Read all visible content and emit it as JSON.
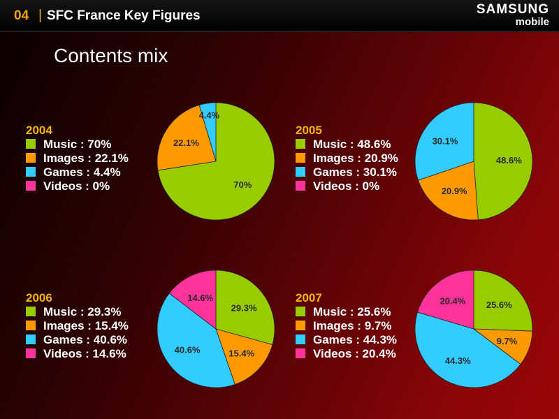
{
  "header": {
    "number": "04",
    "separator": "|",
    "title": "SFC France Key Figures"
  },
  "brand": {
    "line1": "SAMSUNG",
    "line2": "mobile"
  },
  "subtitle": "Contents mix",
  "colors": {
    "music": "#99cc00",
    "images": "#ff9900",
    "games": "#33ccff",
    "videos": "#ff3399"
  },
  "legends": [
    {
      "year": "2004",
      "items": [
        "Music : 70%",
        "Images : 22.1%",
        "Games : 4.4%",
        "Videos : 0%"
      ]
    },
    {
      "year": "2005",
      "items": [
        "Music : 48.6%",
        "Images : 20.9%",
        "Games : 30.1%",
        "Videos : 0%"
      ]
    },
    {
      "year": "2006",
      "items": [
        "Music : 29.3%",
        "Images : 15.4%",
        "Games : 40.6%",
        "Videos : 14.6%"
      ]
    },
    {
      "year": "2007",
      "items": [
        "Music : 25.6%",
        "Images : 9.7%",
        "Games : 44.3%",
        "Videos : 20.4%"
      ]
    }
  ],
  "chart_data": [
    {
      "type": "pie",
      "title": "2004",
      "categories": [
        "Music",
        "Images",
        "Games",
        "Videos"
      ],
      "values": [
        70,
        22.1,
        4.4,
        0
      ],
      "labels": [
        "70%",
        "22.1%",
        "4.4%",
        ""
      ]
    },
    {
      "type": "pie",
      "title": "2005",
      "categories": [
        "Music",
        "Images",
        "Games",
        "Videos"
      ],
      "values": [
        48.6,
        20.9,
        30.1,
        0
      ],
      "labels": [
        "48.6%",
        "20.9%",
        "30.1%",
        ""
      ]
    },
    {
      "type": "pie",
      "title": "2006",
      "categories": [
        "Music",
        "Images",
        "Games",
        "Videos"
      ],
      "values": [
        29.3,
        15.4,
        40.6,
        14.6
      ],
      "labels": [
        "29.3%",
        "15.4%",
        "40.6%",
        "14.6%"
      ]
    },
    {
      "type": "pie",
      "title": "2007",
      "categories": [
        "Music",
        "Images",
        "Games",
        "Videos"
      ],
      "values": [
        25.6,
        9.7,
        44.3,
        20.4
      ],
      "labels": [
        "25.6%",
        "9.7%",
        "44.3%",
        "20.4%"
      ]
    }
  ]
}
